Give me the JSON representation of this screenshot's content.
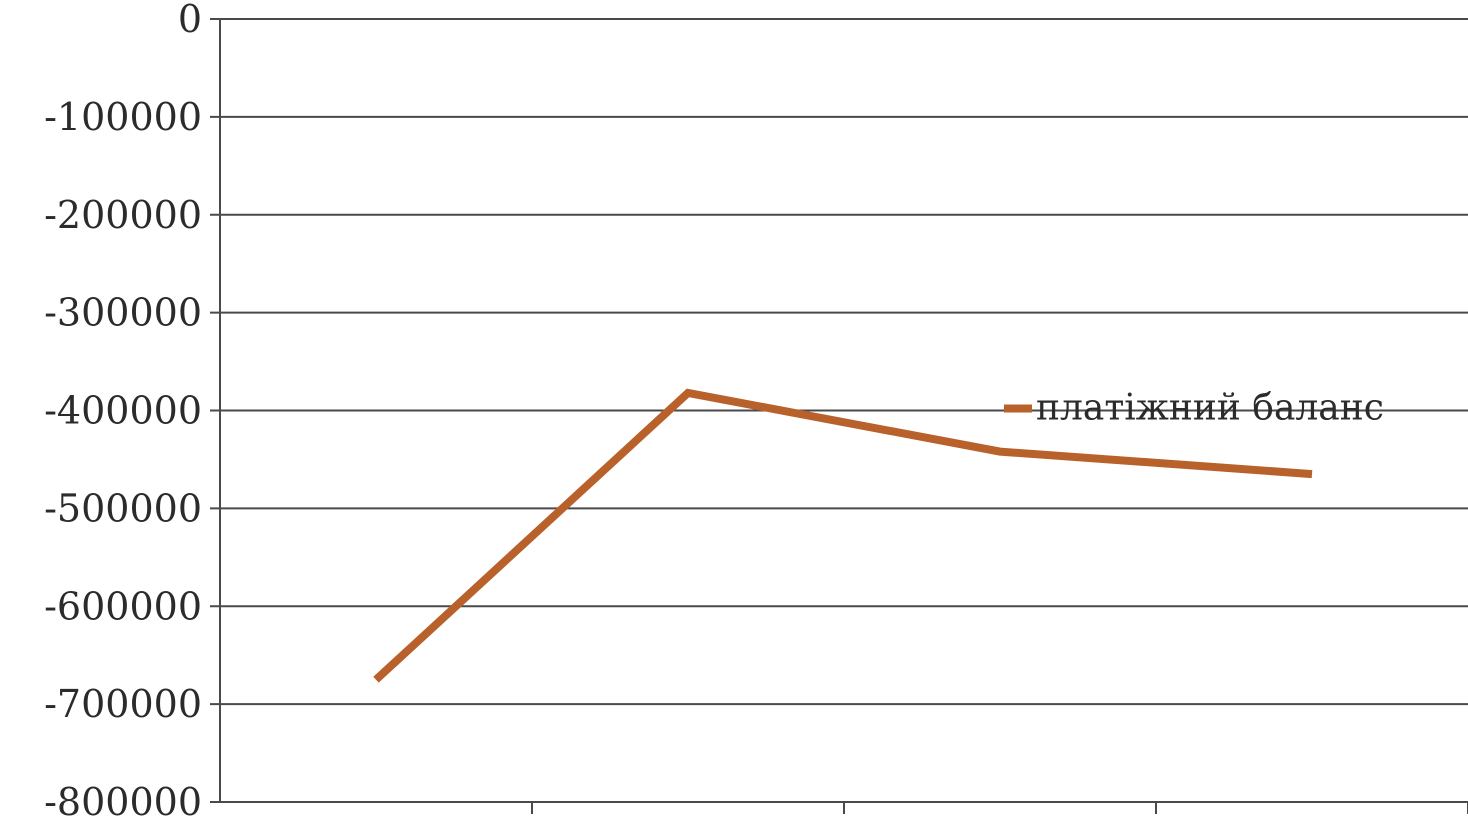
{
  "chart_data": {
    "type": "line",
    "title": "",
    "xlabel": "",
    "ylabel": "",
    "ylim": [
      -800000,
      0
    ],
    "y_ticks": [
      0,
      -100000,
      -200000,
      -300000,
      -400000,
      -500000,
      -600000,
      -700000,
      -800000
    ],
    "y_tick_labels": [
      "0",
      "-100000",
      "-200000",
      "-300000",
      "-400000",
      "-500000",
      "-600000",
      "-700000",
      "-800000"
    ],
    "category_count": 4,
    "grid": "horizontal",
    "legend_position": "right",
    "series": [
      {
        "name": "платіжний баланс",
        "color": "#b8612b",
        "values": [
          -675000,
          -382000,
          -442000,
          -465000
        ]
      }
    ]
  }
}
